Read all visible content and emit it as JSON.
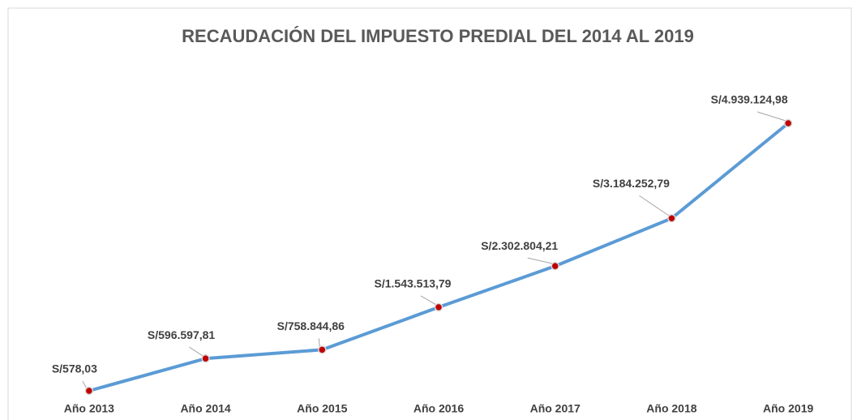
{
  "chart_data": {
    "type": "line",
    "title": "RECAUDACIÓN DEL IMPUESTO PREDIAL DEL 2014 AL 2019",
    "categories": [
      "Año 2013",
      "Año 2014",
      "Año 2015",
      "Año 2016",
      "Año 2017",
      "Año 2018",
      "Año 2019"
    ],
    "values": [
      578.03,
      596597.81,
      758844.86,
      1543513.79,
      2302804.21,
      3184252.79,
      4939124.98
    ],
    "value_labels": [
      "S/578,03",
      "S/596.597,81",
      "S/758.844,86",
      "S/1.543.513,79",
      "S/2.302.804,21",
      "S/3.184.252,79",
      "S/4.939.124,98"
    ],
    "color": "#5b9bd5",
    "marker_color": "#c00000"
  }
}
